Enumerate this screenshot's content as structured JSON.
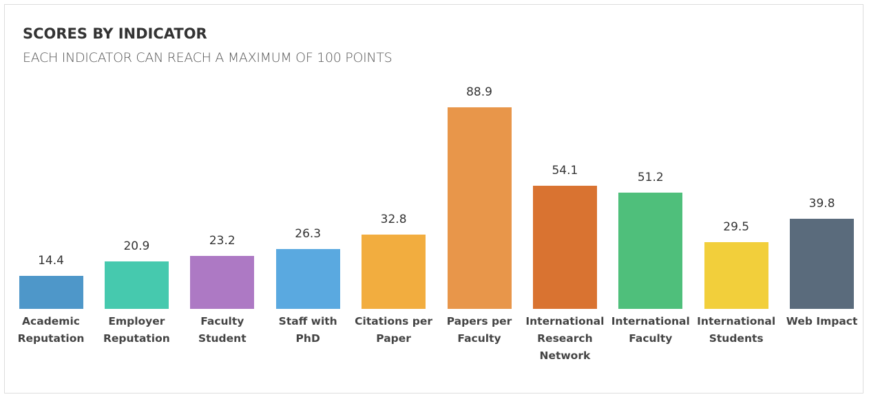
{
  "chart_data": {
    "type": "bar",
    "title": "SCORES BY INDICATOR",
    "subtitle": "EACH INDICATOR CAN REACH A MAXIMUM OF 100 POINTS",
    "categories": [
      "Academic Reputation",
      "Employer Reputation",
      "Faculty Student",
      "Staff with PhD",
      "Citations per Paper",
      "Papers per Faculty",
      "International Research Network",
      "International Faculty",
      "International Students",
      "Web Impact"
    ],
    "values": [
      14.4,
      20.9,
      23.2,
      26.3,
      32.8,
      88.9,
      54.1,
      51.2,
      29.5,
      39.8
    ],
    "colors": [
      "#4e97c9",
      "#46c9ae",
      "#ad79c4",
      "#5aa9e0",
      "#f2ad3f",
      "#e8964a",
      "#d97331",
      "#4fbf7b",
      "#f2cf3b",
      "#5a6b7c"
    ],
    "ylim": [
      0,
      100
    ]
  }
}
